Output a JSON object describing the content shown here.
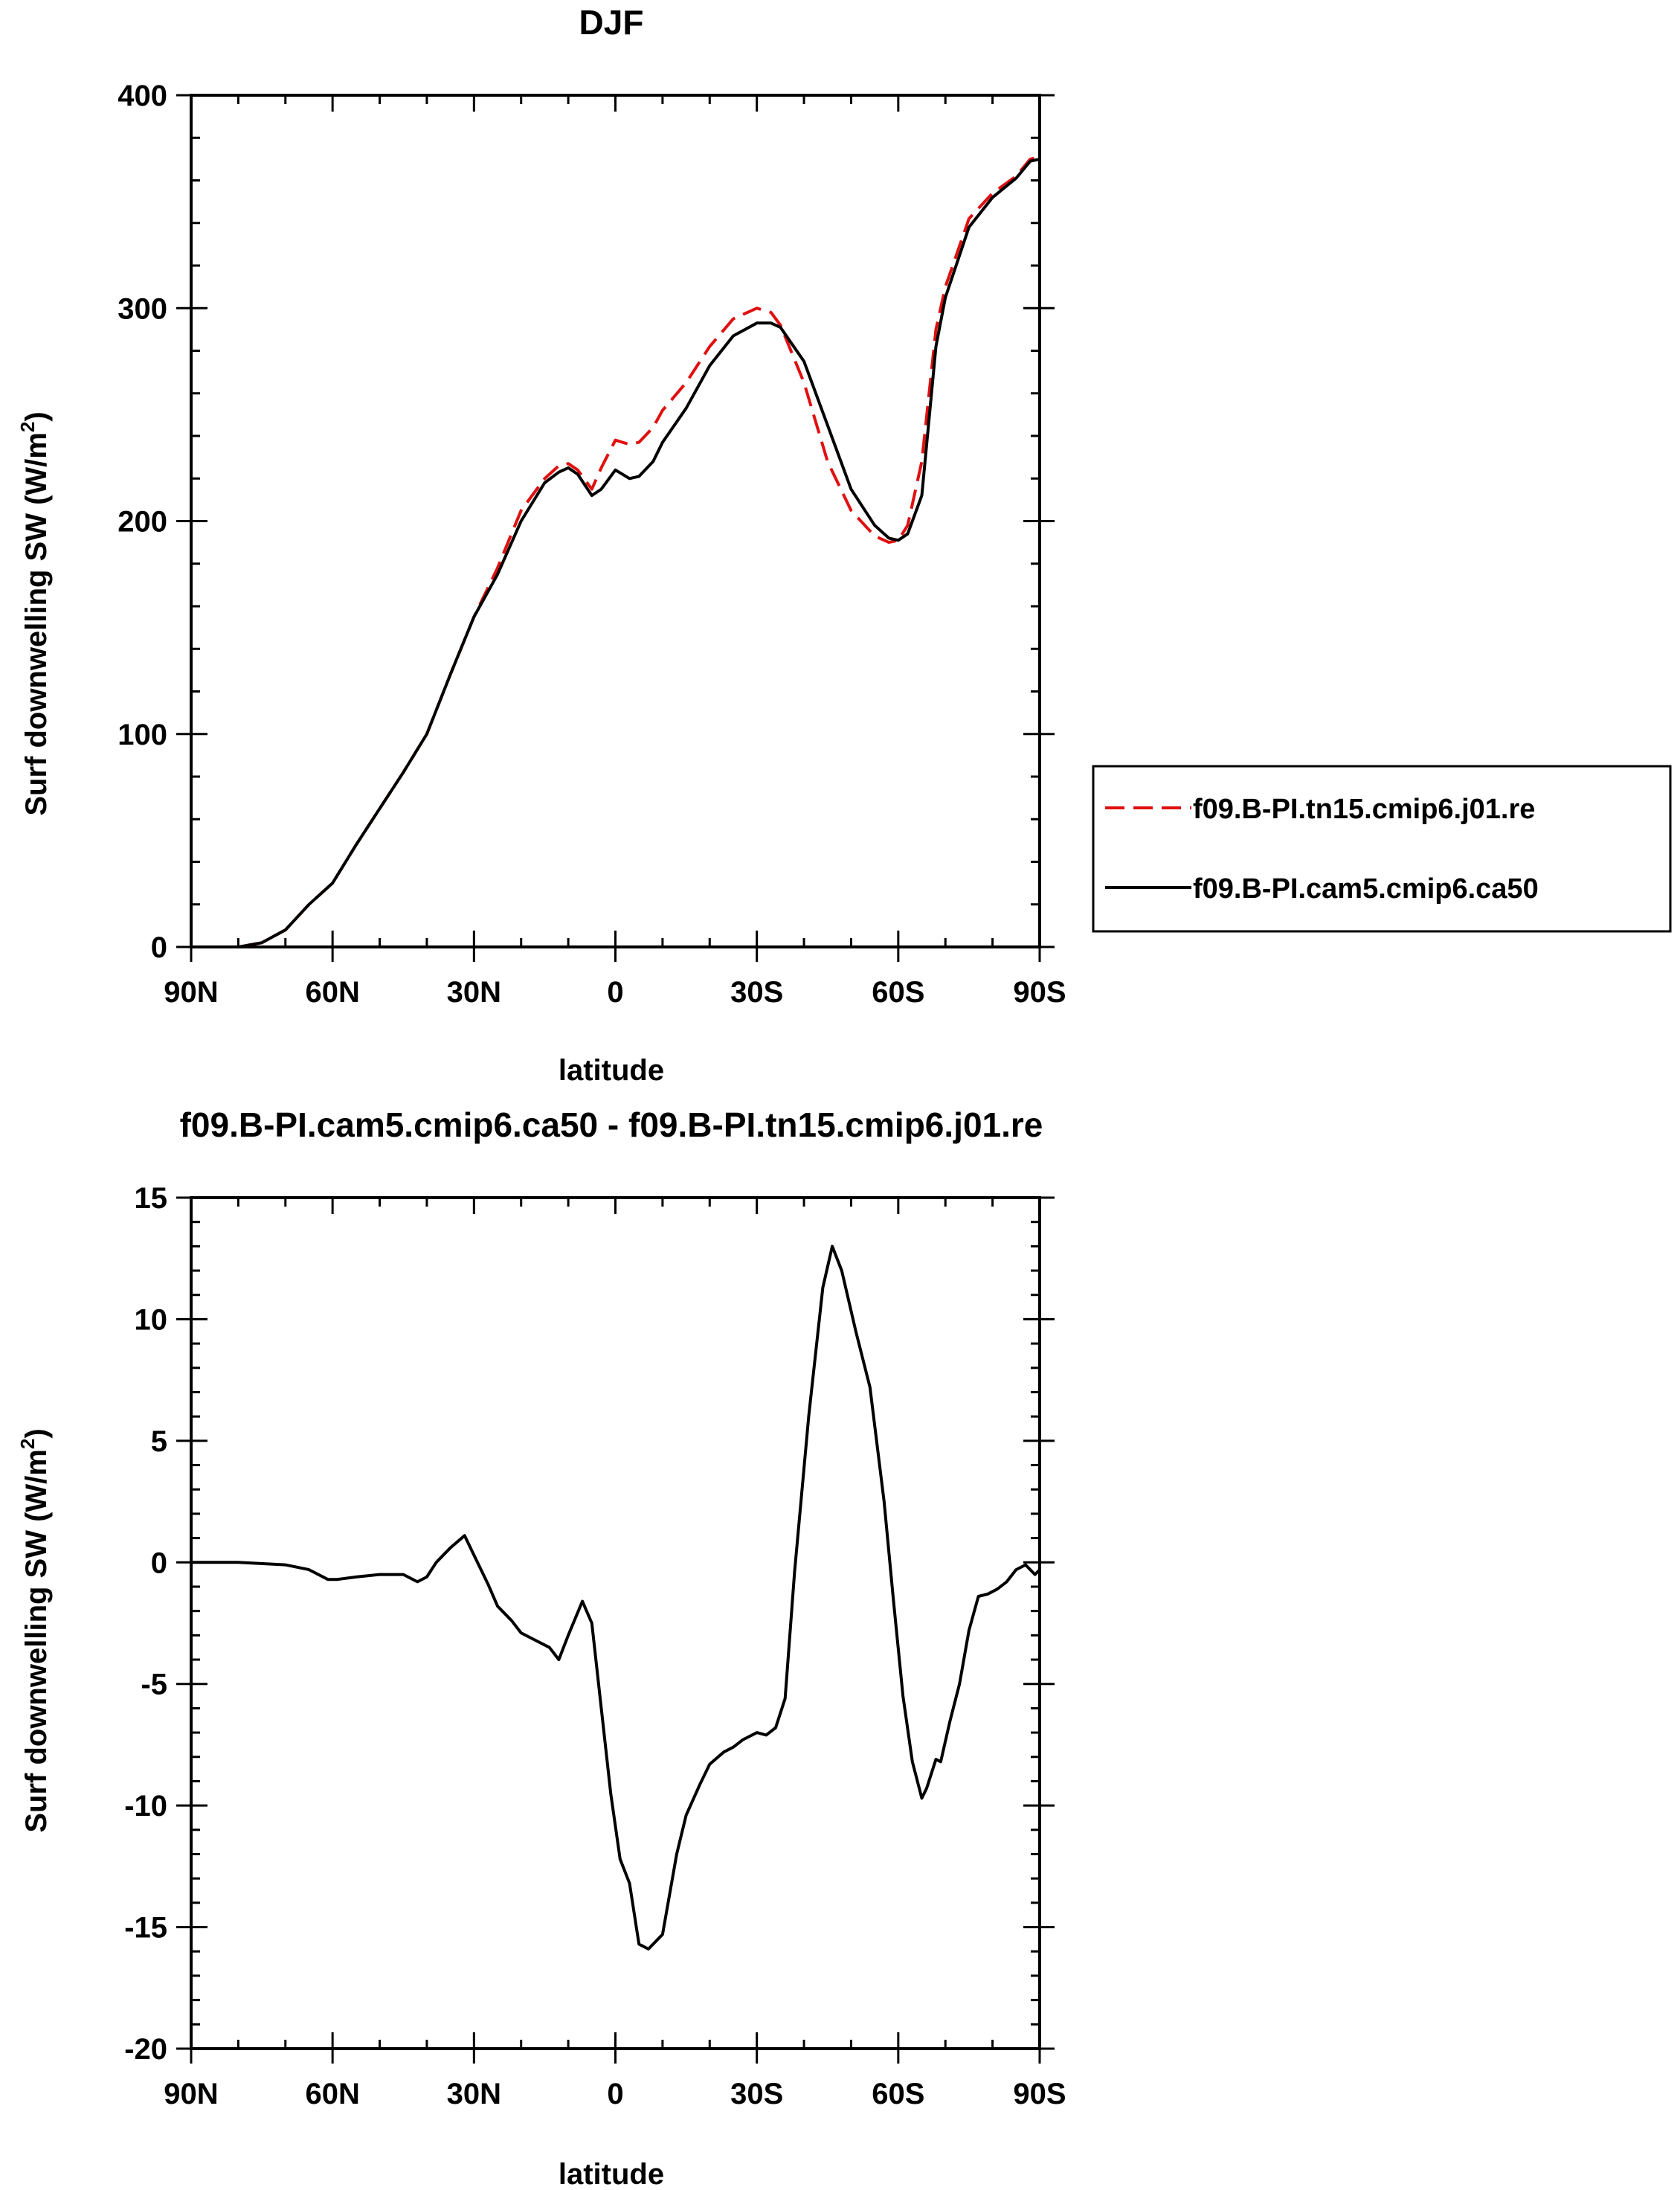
{
  "chart_data": [
    {
      "type": "line",
      "title": "DJF",
      "xlabel": "latitude",
      "ylabel": "Surf downwelling SW (W/m²)",
      "ylabel_main": "Surf downwelling SW (W/m",
      "ylabel_sup": "2",
      "ylabel_close": ")",
      "xlim": [
        90,
        -90
      ],
      "ylim": [
        0,
        400
      ],
      "x_ticks": [
        90,
        60,
        30,
        0,
        -30,
        -60,
        -90
      ],
      "x_tick_labels": [
        "90N",
        "60N",
        "30N",
        "0",
        "30S",
        "60S",
        "90S"
      ],
      "y_ticks": [
        0,
        100,
        200,
        300,
        400
      ],
      "y_tick_labels": [
        "0",
        "100",
        "200",
        "300",
        "400"
      ],
      "legend_position": "right",
      "series": [
        {
          "name": "f09.B-PI.tn15.cmip6.j01.re",
          "color": "#e01010",
          "dash": "dashed",
          "x": [
            90,
            85,
            80,
            75,
            70,
            65,
            60,
            55,
            50,
            45,
            40,
            35,
            30,
            25,
            20,
            15,
            12,
            10,
            8,
            5,
            3,
            0,
            -3,
            -5,
            -8,
            -10,
            -15,
            -20,
            -25,
            -30,
            -33,
            -35,
            -40,
            -45,
            -50,
            -55,
            -58,
            -60,
            -62,
            -65,
            -68,
            -70,
            -75,
            -80,
            -85,
            -88,
            -90
          ],
          "y": [
            0,
            0,
            0,
            2,
            8,
            20,
            30,
            48,
            65,
            82,
            100,
            128,
            155,
            178,
            205,
            220,
            226,
            227,
            224,
            215,
            225,
            238,
            236,
            237,
            244,
            252,
            265,
            282,
            295,
            300,
            298,
            292,
            265,
            228,
            205,
            193,
            190,
            191,
            198,
            228,
            290,
            310,
            342,
            354,
            362,
            370,
            371
          ]
        },
        {
          "name": "f09.B-PI.cam5.cmip6.ca50",
          "color": "#000000",
          "dash": "solid",
          "x": [
            90,
            85,
            80,
            75,
            70,
            65,
            60,
            55,
            50,
            45,
            40,
            35,
            30,
            25,
            20,
            15,
            12,
            10,
            8,
            5,
            3,
            0,
            -3,
            -5,
            -8,
            -10,
            -15,
            -20,
            -25,
            -30,
            -33,
            -35,
            -40,
            -45,
            -50,
            -55,
            -58,
            -60,
            -62,
            -65,
            -68,
            -70,
            -75,
            -80,
            -85,
            -88,
            -90
          ],
          "y": [
            0,
            0,
            0,
            2,
            8,
            20,
            30,
            48,
            65,
            82,
            100,
            128,
            155,
            175,
            200,
            218,
            223,
            225,
            222,
            212,
            215,
            224,
            220,
            221,
            228,
            237,
            253,
            273,
            287,
            293,
            293,
            291,
            275,
            245,
            215,
            198,
            192,
            191,
            194,
            212,
            282,
            305,
            338,
            352,
            361,
            369,
            370
          ]
        }
      ]
    },
    {
      "type": "line",
      "title": "f09.B-PI.cam5.cmip6.ca50 - f09.B-PI.tn15.cmip6.j01.re",
      "xlabel": "latitude",
      "ylabel": "Surf downwelling SW (W/m²)",
      "ylabel_main": "Surf downwelling SW (W/m",
      "ylabel_sup": "2",
      "ylabel_close": ")",
      "xlim": [
        90,
        -90
      ],
      "ylim": [
        -20,
        15
      ],
      "x_ticks": [
        90,
        60,
        30,
        0,
        -30,
        -60,
        -90
      ],
      "x_tick_labels": [
        "90N",
        "60N",
        "30N",
        "0",
        "30S",
        "60S",
        "90S"
      ],
      "y_ticks": [
        15,
        10,
        5,
        0,
        -5,
        -10,
        -15,
        -20
      ],
      "y_tick_labels": [
        "15",
        "10",
        "5",
        "0",
        "-5",
        "-10",
        "-15",
        "-20"
      ],
      "series": [
        {
          "color": "#000000",
          "dash": "solid",
          "x": [
            90,
            80,
            70,
            65,
            61,
            59,
            55,
            50,
            45,
            42,
            40,
            38,
            35,
            32,
            30,
            27,
            25,
            22,
            20,
            17,
            14,
            12,
            10,
            7,
            5,
            3,
            1,
            -1,
            -3,
            -5,
            -7,
            -10,
            -13,
            -15,
            -18,
            -20,
            -23,
            -25,
            -27,
            -30,
            -32,
            -34,
            -36,
            -38,
            -41,
            -44,
            -46,
            -48,
            -51,
            -54,
            -57,
            -59,
            -61,
            -63,
            -65,
            -66,
            -68,
            -69,
            -71,
            -73,
            -75,
            -77,
            -79,
            -81,
            -83,
            -85,
            -87,
            -88,
            -89,
            -90
          ],
          "y": [
            0,
            0,
            -0.1,
            -0.3,
            -0.7,
            -0.7,
            -0.6,
            -0.5,
            -0.5,
            -0.8,
            -0.6,
            0.0,
            0.6,
            1.1,
            0.3,
            -0.9,
            -1.8,
            -2.4,
            -2.9,
            -3.2,
            -3.5,
            -4.0,
            -3.0,
            -1.6,
            -2.5,
            -6.0,
            -9.5,
            -12.2,
            -13.2,
            -15.7,
            -15.9,
            -15.3,
            -12.0,
            -10.4,
            -9.1,
            -8.3,
            -7.8,
            -7.6,
            -7.3,
            -7.0,
            -7.1,
            -6.8,
            -5.6,
            -0.4,
            6.0,
            11.3,
            13.0,
            12.0,
            9.5,
            7.2,
            2.5,
            -1.6,
            -5.5,
            -8.2,
            -9.7,
            -9.3,
            -8.1,
            -8.2,
            -6.5,
            -5.0,
            -2.8,
            -1.4,
            -1.3,
            -1.1,
            -0.8,
            -0.3,
            -0.1,
            -0.3,
            -0.5,
            -0.3
          ]
        }
      ]
    }
  ]
}
